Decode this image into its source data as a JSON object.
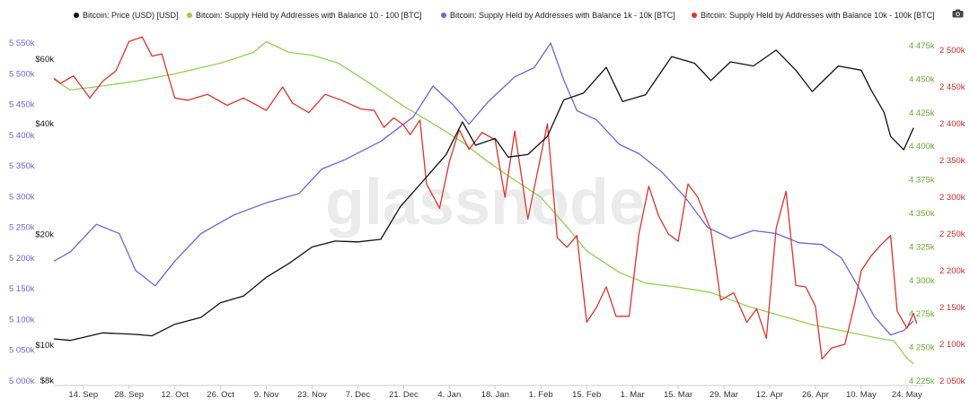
{
  "legend": [
    {
      "label": "Bitcoin: Price (USD) [USD]",
      "color": "#111111"
    },
    {
      "label": "Bitcoin: Supply Held by Addresses with Balance 10 - 100 [BTC]",
      "color": "#8fd14f"
    },
    {
      "label": "Bitcoin: Supply Held by Addresses with Balance 1k - 10k [BTC]",
      "color": "#6f63d8"
    },
    {
      "label": "Bitcoin: Supply Held by Addresses with Balance 10k - 100k [BTC]",
      "color": "#e0322b"
    }
  ],
  "icons": {
    "screenshot": "camera-icon"
  },
  "watermark": "glassnode",
  "chart_data": {
    "type": "line",
    "x_tick_labels": [
      "14. Sep",
      "28. Sep",
      "12. Oct",
      "26. Oct",
      "9. Nov",
      "23. Nov",
      "7. Dec",
      "21. Dec",
      "4. Jan",
      "18. Jan",
      "1. Feb",
      "15. Feb",
      "1. Mar",
      "15. Mar",
      "29. Mar",
      "12. Apr",
      "26. Apr",
      "10. May",
      "24. May"
    ],
    "x_range": [
      "2020-09-05",
      "2021-05-29"
    ],
    "axes": {
      "left_supply_1k_10k": {
        "color": "#6f63d8",
        "min": 5000000,
        "max": 5550000,
        "tick_values": [
          5000000,
          5050000,
          5100000,
          5150000,
          5200000,
          5250000,
          5300000,
          5350000,
          5400000,
          5450000,
          5500000,
          5550000
        ],
        "tick_labels": [
          "5 000k",
          "5 050k",
          "5 100k",
          "5 150k",
          "5 200k",
          "5 250k",
          "5 300k",
          "5 350k",
          "5 400k",
          "5 450k",
          "5 500k",
          "5 550k"
        ]
      },
      "left_price": {
        "color": "#111111",
        "scale": "log",
        "tick_values": [
          8000,
          10000,
          20000,
          40000,
          60000
        ],
        "tick_labels": [
          "$8k",
          "$10k",
          "$20k",
          "$40k",
          "$60k"
        ]
      },
      "right_supply_10_100": {
        "color": "#6aa82e",
        "min": 4225000,
        "max": 4475000,
        "tick_values": [
          4225000,
          4250000,
          4275000,
          4300000,
          4325000,
          4350000,
          4375000,
          4400000,
          4425000,
          4450000,
          4475000
        ],
        "tick_labels": [
          "4 225k",
          "4 250k",
          "4 275k",
          "4 300k",
          "4 325k",
          "4 350k",
          "4 375k",
          "4 400k",
          "4 425k",
          "4 450k",
          "4 475k"
        ]
      },
      "right_supply_10k_100k": {
        "color": "#d12a22",
        "min": 2050000,
        "max": 2500000,
        "tick_values": [
          2050000,
          2100000,
          2150000,
          2200000,
          2250000,
          2300000,
          2350000,
          2400000,
          2450000,
          2500000
        ],
        "tick_labels": [
          "2 050k",
          "2 100k",
          "2 150k",
          "2 200k",
          "2 250k",
          "2 300k",
          "2 350k",
          "2 400k",
          "2 450k",
          "2 500k"
        ]
      }
    },
    "series": [
      {
        "name": "Bitcoin: Price (USD) [USD]",
        "axis": "left_price",
        "color": "#111111",
        "points": [
          [
            "2020-09-05",
            10400
          ],
          [
            "2020-09-10",
            10300
          ],
          [
            "2020-09-20",
            10800
          ],
          [
            "2020-09-30",
            10700
          ],
          [
            "2020-10-05",
            10600
          ],
          [
            "2020-10-12",
            11400
          ],
          [
            "2020-10-20",
            11900
          ],
          [
            "2020-10-26",
            13050
          ],
          [
            "2020-11-02",
            13600
          ],
          [
            "2020-11-09",
            15300
          ],
          [
            "2020-11-16",
            16700
          ],
          [
            "2020-11-23",
            18500
          ],
          [
            "2020-11-30",
            19200
          ],
          [
            "2020-12-07",
            19100
          ],
          [
            "2020-12-14",
            19400
          ],
          [
            "2020-12-20",
            23800
          ],
          [
            "2020-12-27",
            28000
          ],
          [
            "2021-01-03",
            33000
          ],
          [
            "2021-01-08",
            40500
          ],
          [
            "2021-01-12",
            35000
          ],
          [
            "2021-01-18",
            36500
          ],
          [
            "2021-01-22",
            32500
          ],
          [
            "2021-01-28",
            33000
          ],
          [
            "2021-02-03",
            37000
          ],
          [
            "2021-02-08",
            46500
          ],
          [
            "2021-02-14",
            48500
          ],
          [
            "2021-02-21",
            57000
          ],
          [
            "2021-02-26",
            46000
          ],
          [
            "2021-03-05",
            48000
          ],
          [
            "2021-03-13",
            61000
          ],
          [
            "2021-03-20",
            58500
          ],
          [
            "2021-03-25",
            52500
          ],
          [
            "2021-03-31",
            59000
          ],
          [
            "2021-04-07",
            57500
          ],
          [
            "2021-04-14",
            63500
          ],
          [
            "2021-04-20",
            56000
          ],
          [
            "2021-04-25",
            49000
          ],
          [
            "2021-05-03",
            57500
          ],
          [
            "2021-05-10",
            56000
          ],
          [
            "2021-05-13",
            49500
          ],
          [
            "2021-05-17",
            43000
          ],
          [
            "2021-05-19",
            37000
          ],
          [
            "2021-05-23",
            34000
          ],
          [
            "2021-05-26",
            39000
          ]
        ]
      },
      {
        "name": "Bitcoin: Supply Held by Addresses with Balance 10 - 100 [BTC]",
        "axis": "right_supply_10_100",
        "color": "#8fd14f",
        "points": [
          [
            "2020-09-05",
            4450000
          ],
          [
            "2020-09-10",
            4442000
          ],
          [
            "2020-09-20",
            4445000
          ],
          [
            "2020-10-01",
            4449000
          ],
          [
            "2020-10-12",
            4454000
          ],
          [
            "2020-10-26",
            4462000
          ],
          [
            "2020-11-05",
            4470000
          ],
          [
            "2020-11-09",
            4478000
          ],
          [
            "2020-11-16",
            4470000
          ],
          [
            "2020-11-23",
            4468000
          ],
          [
            "2020-12-01",
            4462000
          ],
          [
            "2020-12-10",
            4448000
          ],
          [
            "2020-12-21",
            4430000
          ],
          [
            "2021-01-01",
            4414000
          ],
          [
            "2021-01-08",
            4403000
          ],
          [
            "2021-01-15",
            4390000
          ],
          [
            "2021-01-22",
            4378000
          ],
          [
            "2021-02-01",
            4362000
          ],
          [
            "2021-02-10",
            4337000
          ],
          [
            "2021-02-15",
            4322000
          ],
          [
            "2021-02-25",
            4306000
          ],
          [
            "2021-03-05",
            4298000
          ],
          [
            "2021-03-15",
            4295000
          ],
          [
            "2021-03-25",
            4291000
          ],
          [
            "2021-04-05",
            4281000
          ],
          [
            "2021-04-15",
            4274000
          ],
          [
            "2021-04-25",
            4267000
          ],
          [
            "2021-05-05",
            4262000
          ],
          [
            "2021-05-15",
            4257000
          ],
          [
            "2021-05-20",
            4255000
          ],
          [
            "2021-05-24",
            4242000
          ],
          [
            "2021-05-26",
            4238000
          ]
        ]
      },
      {
        "name": "Bitcoin: Supply Held by Addresses with Balance 1k - 10k [BTC]",
        "axis": "left_supply_1k_10k",
        "color": "#6f63d8",
        "points": [
          [
            "2020-09-05",
            5195000
          ],
          [
            "2020-09-10",
            5210000
          ],
          [
            "2020-09-18",
            5255000
          ],
          [
            "2020-09-25",
            5240000
          ],
          [
            "2020-09-30",
            5180000
          ],
          [
            "2020-10-06",
            5155000
          ],
          [
            "2020-10-12",
            5195000
          ],
          [
            "2020-10-20",
            5240000
          ],
          [
            "2020-10-30",
            5270000
          ],
          [
            "2020-11-09",
            5290000
          ],
          [
            "2020-11-19",
            5305000
          ],
          [
            "2020-11-26",
            5345000
          ],
          [
            "2020-12-03",
            5360000
          ],
          [
            "2020-12-14",
            5390000
          ],
          [
            "2020-12-24",
            5430000
          ],
          [
            "2020-12-30",
            5480000
          ],
          [
            "2021-01-05",
            5450000
          ],
          [
            "2021-01-10",
            5418000
          ],
          [
            "2021-01-16",
            5455000
          ],
          [
            "2021-01-24",
            5495000
          ],
          [
            "2021-01-30",
            5510000
          ],
          [
            "2021-02-04",
            5550000
          ],
          [
            "2021-02-08",
            5490000
          ],
          [
            "2021-02-12",
            5440000
          ],
          [
            "2021-02-18",
            5425000
          ],
          [
            "2021-02-25",
            5385000
          ],
          [
            "2021-03-03",
            5370000
          ],
          [
            "2021-03-10",
            5340000
          ],
          [
            "2021-03-17",
            5300000
          ],
          [
            "2021-03-24",
            5250000
          ],
          [
            "2021-03-31",
            5232000
          ],
          [
            "2021-04-07",
            5245000
          ],
          [
            "2021-04-14",
            5240000
          ],
          [
            "2021-04-21",
            5225000
          ],
          [
            "2021-04-28",
            5222000
          ],
          [
            "2021-05-04",
            5200000
          ],
          [
            "2021-05-10",
            5145000
          ],
          [
            "2021-05-14",
            5105000
          ],
          [
            "2021-05-19",
            5075000
          ],
          [
            "2021-05-23",
            5082000
          ],
          [
            "2021-05-26",
            5098000
          ]
        ]
      },
      {
        "name": "Bitcoin: Supply Held by Addresses with Balance 10k - 100k [BTC]",
        "axis": "right_supply_10k_100k",
        "color": "#e0322b",
        "points": [
          [
            "2020-09-05",
            2462000
          ],
          [
            "2020-09-07",
            2455000
          ],
          [
            "2020-09-11",
            2465000
          ],
          [
            "2020-09-16",
            2435000
          ],
          [
            "2020-09-20",
            2458000
          ],
          [
            "2020-09-24",
            2472000
          ],
          [
            "2020-09-28",
            2512000
          ],
          [
            "2020-10-02",
            2518000
          ],
          [
            "2020-10-05",
            2492000
          ],
          [
            "2020-10-08",
            2495000
          ],
          [
            "2020-10-12",
            2435000
          ],
          [
            "2020-10-16",
            2432000
          ],
          [
            "2020-10-22",
            2440000
          ],
          [
            "2020-10-28",
            2425000
          ],
          [
            "2020-11-02",
            2435000
          ],
          [
            "2020-11-09",
            2418000
          ],
          [
            "2020-11-14",
            2450000
          ],
          [
            "2020-11-17",
            2428000
          ],
          [
            "2020-11-22",
            2415000
          ],
          [
            "2020-11-27",
            2440000
          ],
          [
            "2020-12-02",
            2432000
          ],
          [
            "2020-12-08",
            2420000
          ],
          [
            "2020-12-12",
            2418000
          ],
          [
            "2020-12-15",
            2395000
          ],
          [
            "2020-12-18",
            2408000
          ],
          [
            "2020-12-21",
            2398000
          ],
          [
            "2020-12-23",
            2385000
          ],
          [
            "2020-12-26",
            2405000
          ],
          [
            "2020-12-28",
            2318000
          ],
          [
            "2021-01-01",
            2285000
          ],
          [
            "2021-01-04",
            2348000
          ],
          [
            "2021-01-07",
            2392000
          ],
          [
            "2021-01-10",
            2365000
          ],
          [
            "2021-01-14",
            2388000
          ],
          [
            "2021-01-18",
            2378000
          ],
          [
            "2021-01-21",
            2300000
          ],
          [
            "2021-01-24",
            2390000
          ],
          [
            "2021-01-28",
            2270000
          ],
          [
            "2021-02-03",
            2400000
          ],
          [
            "2021-02-06",
            2245000
          ],
          [
            "2021-02-09",
            2232000
          ],
          [
            "2021-02-12",
            2248000
          ],
          [
            "2021-02-15",
            2130000
          ],
          [
            "2021-02-18",
            2150000
          ],
          [
            "2021-02-21",
            2178000
          ],
          [
            "2021-02-24",
            2138000
          ],
          [
            "2021-02-28",
            2138000
          ],
          [
            "2021-03-03",
            2250000
          ],
          [
            "2021-03-06",
            2315000
          ],
          [
            "2021-03-09",
            2275000
          ],
          [
            "2021-03-12",
            2250000
          ],
          [
            "2021-03-15",
            2240000
          ],
          [
            "2021-03-18",
            2318000
          ],
          [
            "2021-03-21",
            2300000
          ],
          [
            "2021-03-25",
            2255000
          ],
          [
            "2021-03-28",
            2160000
          ],
          [
            "2021-04-01",
            2170000
          ],
          [
            "2021-04-05",
            2130000
          ],
          [
            "2021-04-08",
            2148000
          ],
          [
            "2021-04-11",
            2108000
          ],
          [
            "2021-04-14",
            2258000
          ],
          [
            "2021-04-17",
            2308000
          ],
          [
            "2021-04-20",
            2180000
          ],
          [
            "2021-04-23",
            2178000
          ],
          [
            "2021-04-26",
            2152000
          ],
          [
            "2021-04-28",
            2080000
          ],
          [
            "2021-05-01",
            2095000
          ],
          [
            "2021-05-05",
            2100000
          ],
          [
            "2021-05-08",
            2155000
          ],
          [
            "2021-05-10",
            2200000
          ],
          [
            "2021-05-13",
            2220000
          ],
          [
            "2021-05-16",
            2235000
          ],
          [
            "2021-05-19",
            2248000
          ],
          [
            "2021-05-21",
            2145000
          ],
          [
            "2021-05-24",
            2122000
          ],
          [
            "2021-05-26",
            2142000
          ],
          [
            "2021-05-27",
            2128000
          ]
        ]
      }
    ]
  }
}
